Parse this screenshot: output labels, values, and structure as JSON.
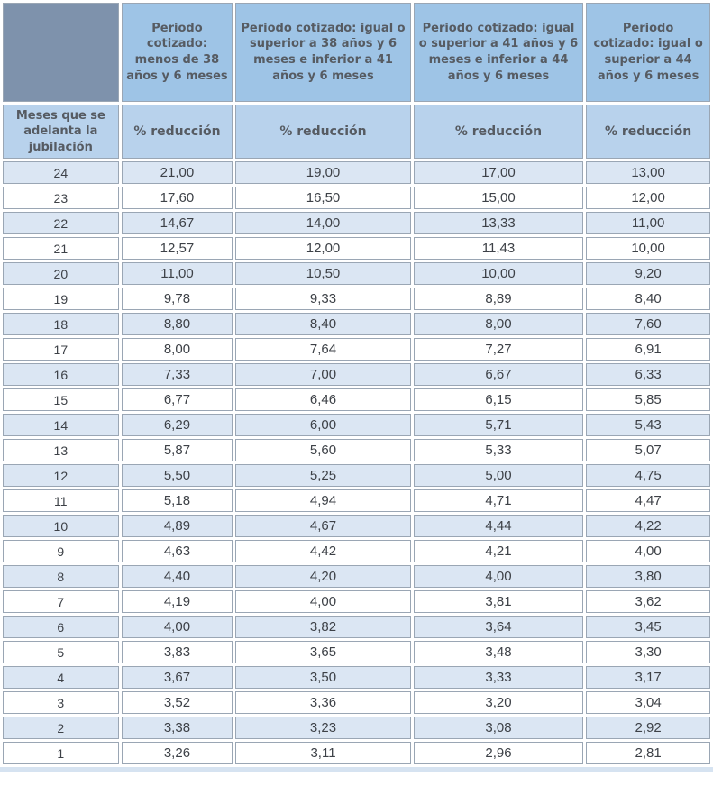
{
  "table": {
    "row_axis_label": "Meses que se adelanta la jubilación",
    "columns": [
      {
        "label": "Periodo cotizado: menos de 38 años y 6 meses",
        "subheader": "% reducción"
      },
      {
        "label": "Periodo cotizado: igual o superior a 38 años y 6 meses e inferior a 41 años y 6 meses",
        "subheader": "% reducción"
      },
      {
        "label": "Periodo cotizado: igual o superior a 41 años y 6 meses e inferior a 44 años y 6 meses",
        "subheader": "% reducción"
      },
      {
        "label": "Periodo cotizado: igual o superior a 44 años y 6 meses",
        "subheader": "% reducción"
      }
    ],
    "rows": [
      {
        "months": "24",
        "values": [
          "21,00",
          "19,00",
          "17,00",
          "13,00"
        ]
      },
      {
        "months": "23",
        "values": [
          "17,60",
          "16,50",
          "15,00",
          "12,00"
        ]
      },
      {
        "months": "22",
        "values": [
          "14,67",
          "14,00",
          "13,33",
          "11,00"
        ]
      },
      {
        "months": "21",
        "values": [
          "12,57",
          "12,00",
          "11,43",
          "10,00"
        ]
      },
      {
        "months": "20",
        "values": [
          "11,00",
          "10,50",
          "10,00",
          "9,20"
        ]
      },
      {
        "months": "19",
        "values": [
          "9,78",
          "9,33",
          "8,89",
          "8,40"
        ]
      },
      {
        "months": "18",
        "values": [
          "8,80",
          "8,40",
          "8,00",
          "7,60"
        ]
      },
      {
        "months": "17",
        "values": [
          "8,00",
          "7,64",
          "7,27",
          "6,91"
        ]
      },
      {
        "months": "16",
        "values": [
          "7,33",
          "7,00",
          "6,67",
          "6,33"
        ]
      },
      {
        "months": "15",
        "values": [
          "6,77",
          "6,46",
          "6,15",
          "5,85"
        ]
      },
      {
        "months": "14",
        "values": [
          "6,29",
          "6,00",
          "5,71",
          "5,43"
        ]
      },
      {
        "months": "13",
        "values": [
          "5,87",
          "5,60",
          "5,33",
          "5,07"
        ]
      },
      {
        "months": "12",
        "values": [
          "5,50",
          "5,25",
          "5,00",
          "4,75"
        ]
      },
      {
        "months": "11",
        "values": [
          "5,18",
          "4,94",
          "4,71",
          "4,47"
        ]
      },
      {
        "months": "10",
        "values": [
          "4,89",
          "4,67",
          "4,44",
          "4,22"
        ]
      },
      {
        "months": "9",
        "values": [
          "4,63",
          "4,42",
          "4,21",
          "4,00"
        ]
      },
      {
        "months": "8",
        "values": [
          "4,40",
          "4,20",
          "4,00",
          "3,80"
        ]
      },
      {
        "months": "7",
        "values": [
          "4,19",
          "4,00",
          "3,81",
          "3,62"
        ]
      },
      {
        "months": "6",
        "values": [
          "4,00",
          "3,82",
          "3,64",
          "3,45"
        ]
      },
      {
        "months": "5",
        "values": [
          "3,83",
          "3,65",
          "3,48",
          "3,30"
        ]
      },
      {
        "months": "4",
        "values": [
          "3,67",
          "3,50",
          "3,33",
          "3,17"
        ]
      },
      {
        "months": "3",
        "values": [
          "3,52",
          "3,36",
          "3,20",
          "3,04"
        ]
      },
      {
        "months": "2",
        "values": [
          "3,38",
          "3,23",
          "3,08",
          "2,92"
        ]
      },
      {
        "months": "1",
        "values": [
          "3,26",
          "3,11",
          "2,96",
          "2,81"
        ]
      }
    ]
  },
  "colors": {
    "corner_bg": "#7e92ac",
    "header_bg": "#9ec4e6",
    "subheader_bg": "#b8d2ec",
    "row_even_bg": "#dbe6f3",
    "row_odd_bg": "#ffffff",
    "border": "#9aa6b4",
    "header_text": "#565b62",
    "data_text": "#3d4147"
  }
}
